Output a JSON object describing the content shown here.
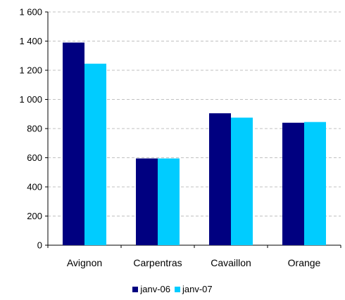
{
  "chart_data": {
    "type": "bar",
    "title": "",
    "xlabel": "",
    "ylabel": "",
    "categories": [
      "Avignon",
      "Carpentras",
      "Cavaillon",
      "Orange"
    ],
    "series": [
      {
        "name": "janv-06",
        "color": "#000080",
        "values": [
          1390,
          595,
          905,
          840
        ]
      },
      {
        "name": "janv-07",
        "color": "#00CCFF",
        "values": [
          1245,
          595,
          875,
          845
        ]
      }
    ],
    "ylim": [
      0,
      1600
    ],
    "yticks": [
      0,
      200,
      400,
      600,
      800,
      1000,
      1200,
      1400,
      1600
    ],
    "ytick_labels": [
      "0",
      "200",
      "400",
      "600",
      "800",
      "1 000",
      "1 200",
      "1 400",
      "1 600"
    ],
    "grid": true,
    "legend_position": "bottom"
  }
}
